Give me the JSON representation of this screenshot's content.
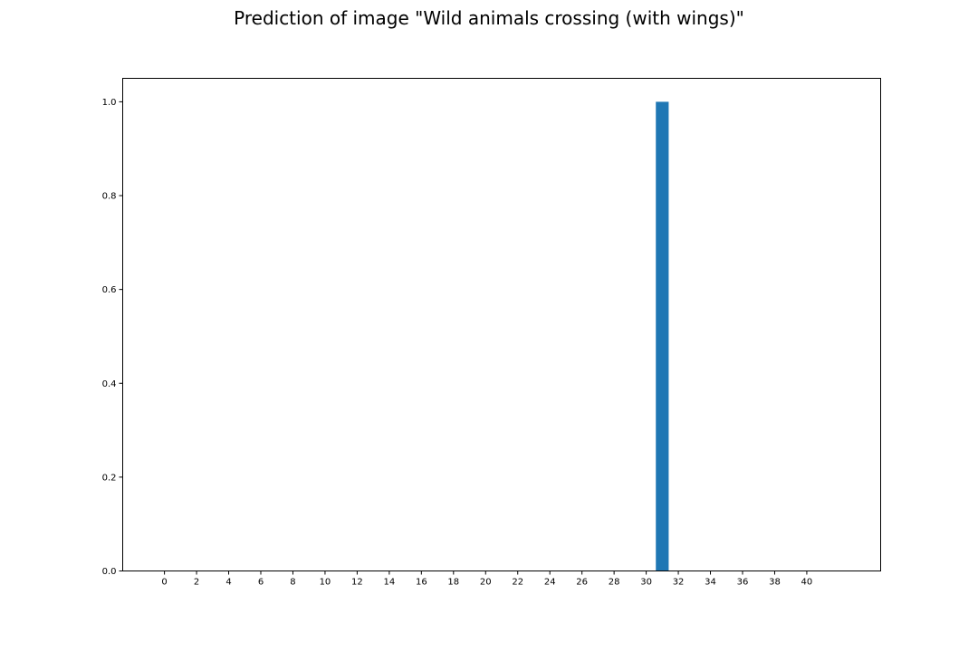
{
  "chart_data": {
    "type": "bar",
    "title": "Prediction of image \"Wild animals crossing (with wings)\"",
    "xlabel": "",
    "ylabel": "",
    "x": [
      0,
      1,
      2,
      3,
      4,
      5,
      6,
      7,
      8,
      9,
      10,
      11,
      12,
      13,
      14,
      15,
      16,
      17,
      18,
      19,
      20,
      21,
      22,
      23,
      24,
      25,
      26,
      27,
      28,
      29,
      30,
      31,
      32,
      33,
      34,
      35,
      36,
      37,
      38,
      39,
      40,
      41,
      42
    ],
    "values": [
      0,
      0,
      0,
      0,
      0,
      0,
      0,
      0,
      0,
      0,
      0,
      0,
      0,
      0,
      0,
      0,
      0,
      0,
      0,
      0,
      0,
      0,
      0,
      0,
      0,
      0,
      0,
      0,
      0,
      0,
      0,
      1.0,
      0,
      0,
      0,
      0,
      0,
      0,
      0,
      0,
      0,
      0,
      0
    ],
    "xticks": [
      "0",
      "2",
      "4",
      "6",
      "8",
      "10",
      "12",
      "14",
      "16",
      "18",
      "20",
      "22",
      "24",
      "26",
      "28",
      "30",
      "32",
      "34",
      "36",
      "38",
      "40"
    ],
    "yticks": [
      "0.0",
      "0.2",
      "0.4",
      "0.6",
      "0.8",
      "1.0"
    ],
    "xlim": [
      -2.6,
      44.6
    ],
    "ylim": [
      0,
      1.05
    ],
    "bar_color": "#1f77b4",
    "grid": false,
    "legend": "none"
  }
}
